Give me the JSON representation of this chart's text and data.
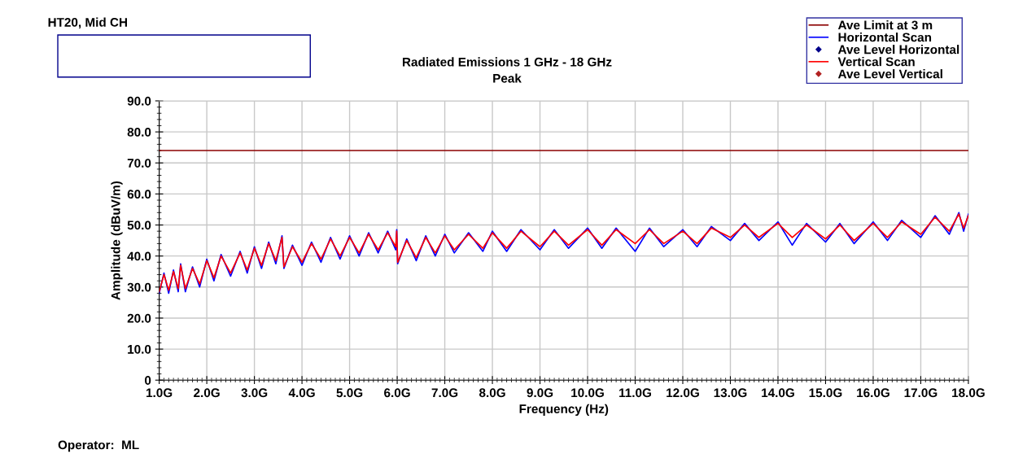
{
  "chart_data": {
    "type": "line",
    "title": "Radiated Emissions 1 GHz - 18 GHz",
    "subtitle": "Peak",
    "xlabel": "Frequency (Hz)",
    "ylabel": "Amplitude (dBuV/m)",
    "annotations": [
      "HT20, Mid CH",
      "Operator:  ML"
    ],
    "xlim": [
      1,
      18
    ],
    "xticks": [
      {
        "value": 1,
        "label": "1.0G"
      },
      {
        "value": 2,
        "label": "2.0G"
      },
      {
        "value": 3,
        "label": "3.0G"
      },
      {
        "value": 4,
        "label": "4.0G"
      },
      {
        "value": 5,
        "label": "5.0G"
      },
      {
        "value": 6,
        "label": "6.0G"
      },
      {
        "value": 7,
        "label": "7.0G"
      },
      {
        "value": 8,
        "label": "8.0G"
      },
      {
        "value": 9,
        "label": "9.0G"
      },
      {
        "value": 10,
        "label": "10.0G"
      },
      {
        "value": 11,
        "label": "11.0G"
      },
      {
        "value": 12,
        "label": "12.0G"
      },
      {
        "value": 13,
        "label": "13.0G"
      },
      {
        "value": 14,
        "label": "14.0G"
      },
      {
        "value": 15,
        "label": "15.0G"
      },
      {
        "value": 16,
        "label": "16.0G"
      },
      {
        "value": 17,
        "label": "17.0G"
      },
      {
        "value": 18,
        "label": "18.0G"
      }
    ],
    "ylim": [
      0,
      90
    ],
    "yticks": [
      0,
      {
        "value": 10,
        "label": "10.0"
      },
      {
        "value": 20,
        "label": "20.0"
      },
      {
        "value": 30,
        "label": "30.0"
      },
      {
        "value": 40,
        "label": "40.0"
      },
      {
        "value": 50,
        "label": "50.0"
      },
      {
        "value": 60,
        "label": "60.0"
      },
      {
        "value": 70,
        "label": "70.0"
      },
      {
        "value": 80,
        "label": "80.0"
      },
      {
        "value": 90,
        "label": "90.0"
      }
    ],
    "grid": true,
    "legend": "top right",
    "ref_lines": [
      {
        "axis": "y",
        "value": 74,
        "label": "Ave Limit at 3 m",
        "color": "#8b0000",
        "line_style": "solid"
      }
    ],
    "series": [
      {
        "name": "Horizontal Scan",
        "color": "#0000ff",
        "x": [
          1.0,
          1.1,
          1.2,
          1.3,
          1.4,
          1.45,
          1.55,
          1.7,
          1.85,
          2.0,
          2.15,
          2.3,
          2.5,
          2.7,
          2.85,
          3.0,
          3.15,
          3.3,
          3.45,
          3.58,
          3.62,
          3.8,
          4.0,
          4.2,
          4.4,
          4.6,
          4.8,
          5.0,
          5.2,
          5.4,
          5.6,
          5.8,
          5.97,
          5.99,
          6.01,
          6.2,
          6.4,
          6.6,
          6.8,
          7.0,
          7.2,
          7.5,
          7.8,
          8.0,
          8.3,
          8.6,
          9.0,
          9.3,
          9.6,
          10.0,
          10.3,
          10.6,
          11.0,
          11.3,
          11.6,
          12.0,
          12.3,
          12.6,
          13.0,
          13.3,
          13.6,
          14.0,
          14.3,
          14.6,
          15.0,
          15.3,
          15.6,
          16.0,
          16.3,
          16.6,
          17.0,
          17.3,
          17.6,
          17.8,
          17.9,
          18.0
        ],
        "values": [
          28,
          34.5,
          28,
          35.5,
          28.5,
          37.5,
          28.5,
          36.5,
          30,
          39,
          32,
          40.5,
          33.5,
          41.5,
          34.5,
          43,
          36,
          44.5,
          37.5,
          46.5,
          36,
          43.5,
          37,
          44.5,
          38,
          46,
          39,
          46.5,
          40,
          47.5,
          41,
          48,
          42,
          48.5,
          37.5,
          45.5,
          38.5,
          46.5,
          40,
          47,
          41,
          47.5,
          41.5,
          48,
          41.5,
          48.5,
          42,
          48.5,
          42.5,
          49,
          42.5,
          49,
          41.5,
          49,
          43,
          48.5,
          43,
          49.5,
          45,
          50.5,
          45,
          51,
          43.5,
          50.5,
          44.5,
          50.5,
          44,
          51,
          45,
          51.5,
          46,
          53,
          47,
          54,
          48,
          53.5
        ]
      },
      {
        "name": "Ave Level Horizontal",
        "type": "scatter",
        "color": "#00008b",
        "marker": "diamond"
      },
      {
        "name": "Vertical Scan",
        "color": "#ff0000",
        "x": [
          1.0,
          1.1,
          1.2,
          1.3,
          1.4,
          1.45,
          1.55,
          1.7,
          1.85,
          2.0,
          2.15,
          2.3,
          2.5,
          2.7,
          2.85,
          3.0,
          3.15,
          3.3,
          3.45,
          3.58,
          3.62,
          3.8,
          4.0,
          4.2,
          4.4,
          4.6,
          4.8,
          5.0,
          5.2,
          5.4,
          5.6,
          5.8,
          5.97,
          5.99,
          6.01,
          6.2,
          6.4,
          6.6,
          6.8,
          7.0,
          7.2,
          7.5,
          7.8,
          8.0,
          8.3,
          8.6,
          9.0,
          9.3,
          9.6,
          10.0,
          10.3,
          10.6,
          11.0,
          11.3,
          11.6,
          12.0,
          12.3,
          12.6,
          13.0,
          13.3,
          13.6,
          14.0,
          14.3,
          14.6,
          15.0,
          15.3,
          15.6,
          16.0,
          16.3,
          16.6,
          17.0,
          17.3,
          17.6,
          17.8,
          17.9,
          18.0
        ],
        "values": [
          28.5,
          34,
          29,
          35,
          29.5,
          37,
          29.5,
          36,
          31,
          38.5,
          33,
          40,
          34.5,
          41,
          35.5,
          42.5,
          37,
          44,
          38.5,
          46,
          36.5,
          43,
          38,
          44,
          39,
          45.5,
          40,
          46,
          41,
          47,
          42,
          47.5,
          43,
          48,
          38,
          45,
          39.5,
          46,
          41,
          46.5,
          42,
          47,
          42.5,
          47.5,
          42.5,
          48,
          43,
          48,
          43.5,
          48.5,
          43.5,
          48.5,
          44,
          48.5,
          44,
          48,
          44,
          49,
          46,
          50,
          46,
          50.5,
          46,
          50,
          45.5,
          50,
          45,
          50.5,
          46,
          51,
          47,
          52.5,
          48,
          53.5,
          49,
          53
        ]
      },
      {
        "name": "Ave Level Vertical",
        "type": "scatter",
        "color": "#b22222",
        "marker": "diamond"
      }
    ]
  }
}
